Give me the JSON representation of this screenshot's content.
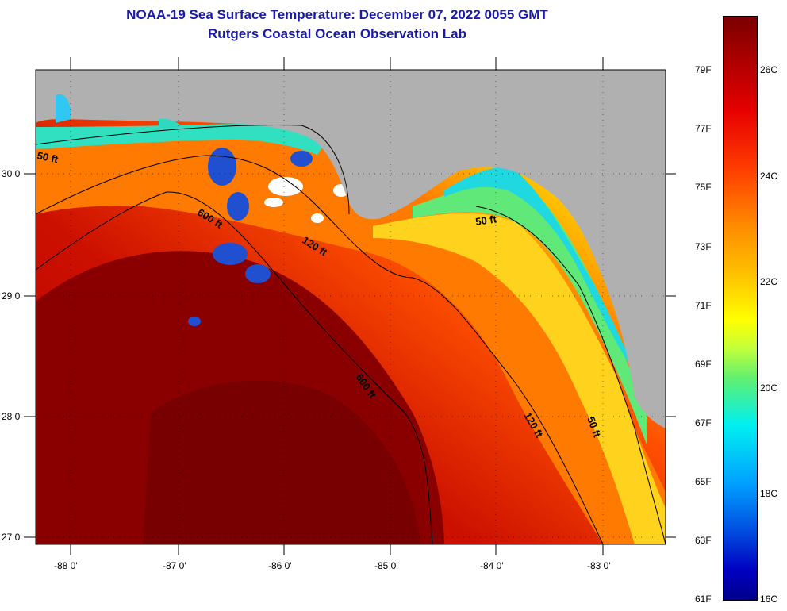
{
  "title": {
    "line1": "NOAA-19 Sea Surface Temperature:  December 07, 2022 0055 GMT",
    "line2": "Rutgers Coastal Ocean Observation Lab"
  },
  "map": {
    "longitude_labels": [
      "-88 0'",
      "-87 0'",
      "-86 0'",
      "-85 0'",
      "-84 0'",
      "-83 0'"
    ],
    "latitude_labels": [
      "30 0'",
      "29 0'",
      "28 0'",
      "27 0'"
    ],
    "isobath_labels": [
      "50 ft",
      "600 ft",
      "120 ft",
      "50 ft",
      "600 ft",
      "120 ft",
      "50 ft"
    ]
  },
  "colorbar": {
    "fahrenheit_labels": [
      "79F",
      "77F",
      "75F",
      "73F",
      "71F",
      "69F",
      "67F",
      "65F",
      "63F",
      "61F"
    ],
    "celsius_labels": [
      "26C",
      "24C",
      "22C",
      "20C",
      "18C",
      "16C"
    ]
  },
  "colors": {
    "land": "#b0b0b0",
    "title": "#1a1aa8"
  }
}
